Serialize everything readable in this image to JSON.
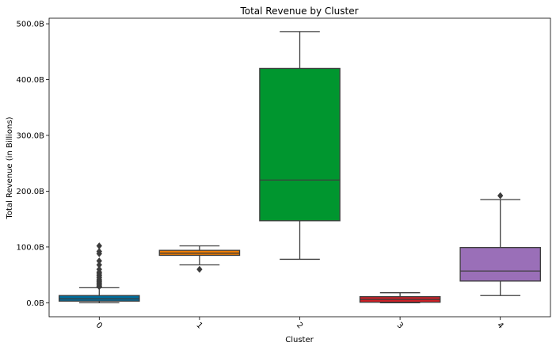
{
  "chart_data": {
    "type": "box",
    "title": "Total Revenue by Cluster",
    "xlabel": "Cluster",
    "ylabel": "Total Revenue (in Billions)",
    "ylim": [
      -25,
      510
    ],
    "yticks": [
      0,
      100,
      200,
      300,
      400,
      500
    ],
    "ytick_labels": [
      "0.0B",
      "100.0B",
      "200.0B",
      "300.0B",
      "400.0B",
      "500.0B"
    ],
    "grid": false,
    "categories": [
      "0",
      "1",
      "2",
      "3",
      "4"
    ],
    "boxes": [
      {
        "category": "0",
        "color": "#006d9c",
        "whisker_low": 0,
        "q1": 3,
        "median": 7,
        "q3": 13,
        "whisker_high": 27,
        "outliers": [
          29,
          30,
          32,
          34,
          36,
          38,
          40,
          42,
          45,
          48,
          50,
          53,
          55,
          60,
          68,
          75,
          88,
          92,
          102
        ]
      },
      {
        "category": "1",
        "color": "#f07d00",
        "whisker_low": 68,
        "q1": 85,
        "median": 89,
        "q3": 94,
        "whisker_high": 102,
        "outliers": [
          60
        ]
      },
      {
        "category": "2",
        "color": "#00962f",
        "whisker_low": 78,
        "q1": 147,
        "median": 220,
        "q3": 420,
        "whisker_high": 486,
        "outliers": []
      },
      {
        "category": "3",
        "color": "#cc2027",
        "whisker_low": 0,
        "q1": 1,
        "median": 6,
        "q3": 11,
        "whisker_high": 18,
        "outliers": []
      },
      {
        "category": "4",
        "color": "#9a6fb8",
        "whisker_low": 13,
        "q1": 39,
        "median": 57,
        "q3": 99,
        "whisker_high": 185,
        "outliers": [
          192
        ]
      }
    ]
  }
}
